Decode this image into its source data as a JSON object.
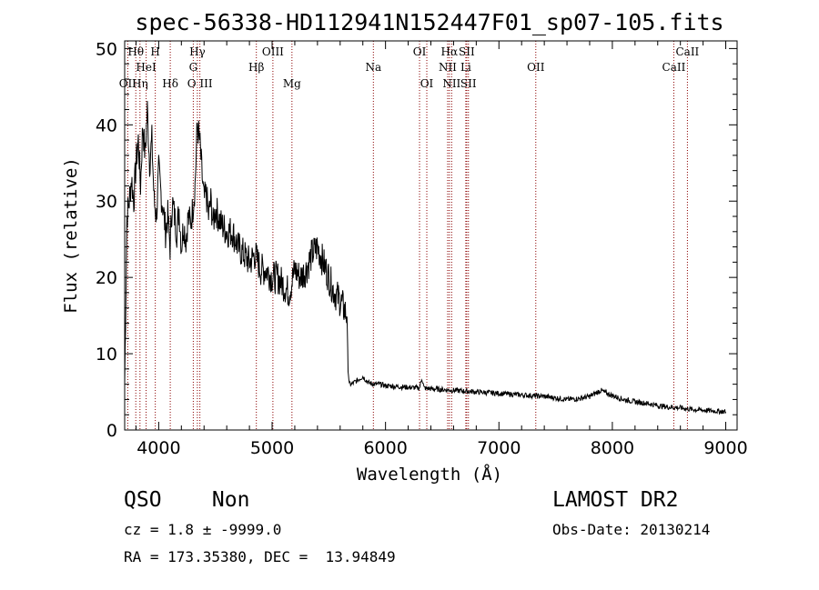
{
  "chart_data": {
    "type": "line",
    "title": "spec-56338-HD112941N152447F01_sp07-105.fits",
    "xlabel": "Wavelength (Å)",
    "ylabel": "Flux (relative)",
    "xlim": [
      3700,
      9100
    ],
    "ylim": [
      0,
      51
    ],
    "x_ticks": [
      4000,
      5000,
      6000,
      7000,
      8000,
      9000
    ],
    "y_ticks": [
      0,
      10,
      20,
      30,
      40,
      50
    ],
    "grid": false,
    "series": [
      {
        "x": [
          3700,
          3720,
          3740,
          3760,
          3780,
          3800,
          3820,
          3840,
          3860,
          3880,
          3900,
          3920,
          3940,
          3960,
          3980,
          4000,
          4020,
          4040,
          4060,
          4080,
          4100,
          4120,
          4140,
          4160,
          4180,
          4200,
          4220,
          4240,
          4260,
          4280,
          4300,
          4320,
          4340,
          4360,
          4380,
          4400,
          4420,
          4440,
          4460,
          4480,
          4500,
          4550,
          4600,
          4650,
          4700,
          4750,
          4800,
          4850,
          4900,
          4950,
          5000,
          5050,
          5100,
          5150,
          5200,
          5250,
          5300,
          5350,
          5400,
          5450,
          5500,
          5550,
          5600,
          5630,
          5660,
          5670,
          5680,
          5700,
          5750,
          5800,
          5850,
          5900,
          5950,
          6000,
          6100,
          6200,
          6300,
          6320,
          6340,
          6400,
          6500,
          6600,
          6700,
          6800,
          6900,
          7000,
          7100,
          7200,
          7300,
          7400,
          7500,
          7600,
          7700,
          7800,
          7850,
          7900,
          7950,
          8000,
          8100,
          8200,
          8300,
          8400,
          8500,
          8600,
          8700,
          8800,
          8900,
          9000
        ],
        "y": [
          6,
          28,
          30,
          33,
          30,
          35,
          38,
          32,
          40,
          36,
          42,
          35,
          38,
          30,
          28,
          34,
          31,
          29,
          26,
          28,
          24,
          30,
          28,
          26,
          29,
          24,
          27,
          25,
          28,
          27,
          29,
          32,
          40,
          38,
          34,
          30,
          31,
          28,
          30,
          27,
          29,
          27,
          26,
          26,
          24,
          23,
          22,
          23,
          21,
          21,
          20,
          20,
          19,
          18,
          21,
          20,
          21,
          23,
          24,
          22,
          20,
          18,
          17,
          16,
          15,
          8,
          6,
          6,
          6.5,
          7,
          6.2,
          6,
          6,
          5.8,
          5.7,
          5.6,
          5.5,
          6.8,
          5.5,
          5.4,
          5.3,
          5.2,
          5.1,
          5,
          4.9,
          4.8,
          4.7,
          4.6,
          4.5,
          4.4,
          4.2,
          4,
          4.1,
          4.4,
          4.8,
          5.2,
          4.8,
          4.5,
          4,
          3.7,
          3.5,
          3.2,
          3,
          2.9,
          2.7,
          2.6,
          2.5,
          2.4
        ]
      }
    ],
    "line_labels": [
      {
        "label": "Hθ",
        "wavelength": 3798,
        "row": 1
      },
      {
        "label": "H",
        "wavelength": 3970,
        "row": 1
      },
      {
        "label": "HeI",
        "wavelength": 3889,
        "row": 2
      },
      {
        "label": "OII",
        "wavelength": 3727,
        "row": 3
      },
      {
        "label": "Hη",
        "wavelength": 3835,
        "row": 3
      },
      {
        "label": "Hδ",
        "wavelength": 4102,
        "row": 3
      },
      {
        "label": "Hγ",
        "wavelength": 4341,
        "row": 1
      },
      {
        "label": "G",
        "wavelength": 4305,
        "row": 2
      },
      {
        "label": "O III",
        "wavelength": 4363,
        "row": 3
      },
      {
        "label": "OIII",
        "wavelength": 5007,
        "row": 1
      },
      {
        "label": "Hβ",
        "wavelength": 4861,
        "row": 2
      },
      {
        "label": "Mg",
        "wavelength": 5175,
        "row": 3
      },
      {
        "label": "Na",
        "wavelength": 5893,
        "row": 2
      },
      {
        "label": "OI",
        "wavelength": 6300,
        "row": 1
      },
      {
        "label": "OI",
        "wavelength": 6364,
        "row": 3
      },
      {
        "label": "Hα",
        "wavelength": 6563,
        "row": 1
      },
      {
        "label": "SII",
        "wavelength": 6716,
        "row": 1
      },
      {
        "label": "NII",
        "wavelength": 6548,
        "row": 2
      },
      {
        "label": "Li",
        "wavelength": 6708,
        "row": 2
      },
      {
        "label": "NII",
        "wavelength": 6583,
        "row": 3
      },
      {
        "label": "SII",
        "wavelength": 6731,
        "row": 3
      },
      {
        "label": "OII",
        "wavelength": 7325,
        "row": 2
      },
      {
        "label": "CaII",
        "wavelength": 8662,
        "row": 1
      },
      {
        "label": "CaII",
        "wavelength": 8542,
        "row": 2
      }
    ],
    "marker_lines": [
      3727,
      3798,
      3835,
      3889,
      3970,
      4102,
      4305,
      4341,
      4363,
      4861,
      5007,
      5175,
      5893,
      6300,
      6364,
      6548,
      6563,
      6583,
      6708,
      6716,
      6731,
      7325,
      8542,
      8662
    ],
    "marker_color": "#8b0000"
  },
  "info": {
    "class_label": "QSO    Non",
    "survey": "LAMOST DR2",
    "cz": "cz = 1.8 ± -9999.0",
    "obs_date": "Obs-Date: 20130214",
    "radec": "RA = 173.35380, DEC =  13.94849"
  }
}
